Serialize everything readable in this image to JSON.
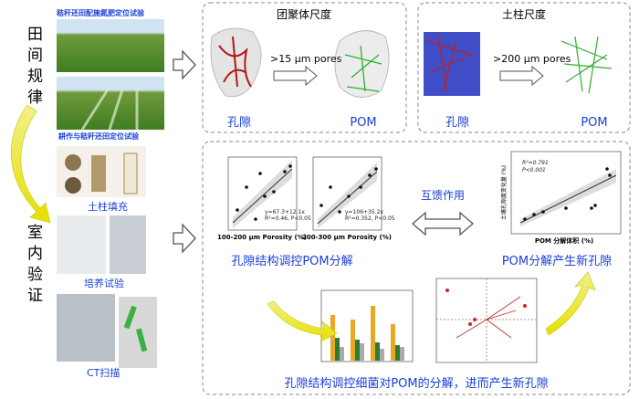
{
  "side_labels": [
    "田间规律",
    "室内验证"
  ],
  "field_photos": [
    "秸秆还田配施氮肥定位试验",
    "耕作与秸秆还田定位试验"
  ],
  "lab_steps": [
    "土柱填充",
    "培养试验",
    "CT扫描"
  ],
  "scales": [
    {
      "title": "团聚体尺度",
      "threshold": ">15 μm pores",
      "pore": "孔隙",
      "pom": "POM"
    },
    {
      "title": "土柱尺度",
      "threshold": ">200 μm pores",
      "pore": "孔隙",
      "pom": "POM"
    }
  ],
  "middle": {
    "left": "孔隙结构调控POM分解",
    "center": "互馈作用",
    "right": "POM分解产生新孔隙",
    "bottom": "孔隙结构调控细菌对POM的分解，进而产生新孔隙"
  },
  "plots": {
    "plot1_x": "100-200 μm Porosity (%)",
    "plot1_eq": "y=67.3+12.1x",
    "plot1_stat": "R²=0.46, P<0.05",
    "plot2_x": "200-300 μm Porosity (%)",
    "plot2_eq": "y=106+35.2x",
    "plot2_stat": "R²=0.352, P<0.05",
    "plot3_x": "POM 分解体积 (%)",
    "plot3_y": "土壤孔隙度变化量 (%)",
    "plot3_r": "R²=0.791",
    "plot3_p": "P<0.001"
  }
}
